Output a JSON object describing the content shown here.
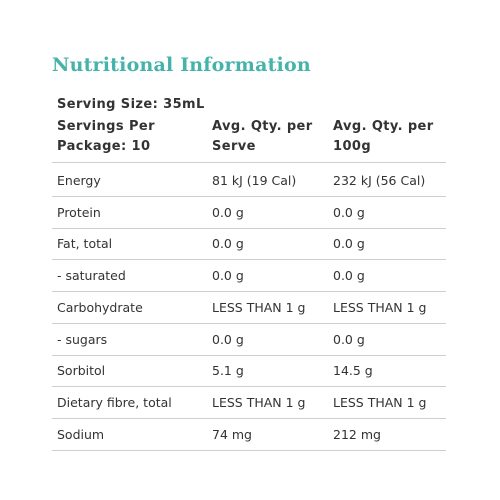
{
  "header": {
    "title": "Nutritional Information",
    "serving_size": "Serving Size: 35mL",
    "servings_per_package": "Servings Per\nPackage: 10"
  },
  "table": {
    "columns": [
      "Avg. Qty. per\nServe",
      "Avg. Qty. per\n100g"
    ],
    "rows": [
      [
        "Energy",
        "81 kJ (19 Cal)",
        "232 kJ (56 Cal)"
      ],
      [
        "Protein",
        "0.0 g",
        "0.0 g"
      ],
      [
        "Fat, total",
        "0.0 g",
        "0.0 g"
      ],
      [
        "- saturated",
        "0.0 g",
        "0.0 g"
      ],
      [
        "Carbohydrate",
        "LESS THAN 1 g",
        "LESS THAN 1 g"
      ],
      [
        "- sugars",
        "0.0 g",
        "0.0 g"
      ],
      [
        "Sorbitol",
        "5.1 g",
        "14.5 g"
      ],
      [
        "Dietary fibre, total",
        "LESS THAN 1 g",
        "LESS THAN 1 g"
      ],
      [
        "Sodium",
        "74 mg",
        "212 mg"
      ]
    ]
  }
}
